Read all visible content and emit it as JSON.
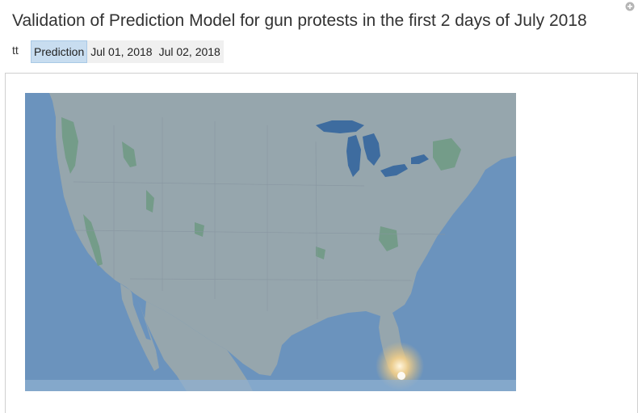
{
  "header": {
    "title": "Validation of Prediction Model for gun protests in the first 2 days of July 2018"
  },
  "filter": {
    "label": "tt",
    "tabs": [
      {
        "label": "Prediction",
        "active": true
      },
      {
        "label": "Jul 01, 2018",
        "active": false
      },
      {
        "label": "Jul 02, 2018",
        "active": false
      }
    ]
  },
  "icons": {
    "corner": "plus-circle-icon"
  },
  "colors": {
    "ocean": "#6b93bd",
    "land": "#96a6ad",
    "lakes": "#3e6c9f",
    "vegetation": "#6f9a83",
    "hotspot": "#f4cf8a",
    "active_tab": "#c8ddf0"
  },
  "map": {
    "region": "Continental United States",
    "hotspots": [
      {
        "label": "Southern Florida",
        "intensity": "high"
      }
    ]
  }
}
